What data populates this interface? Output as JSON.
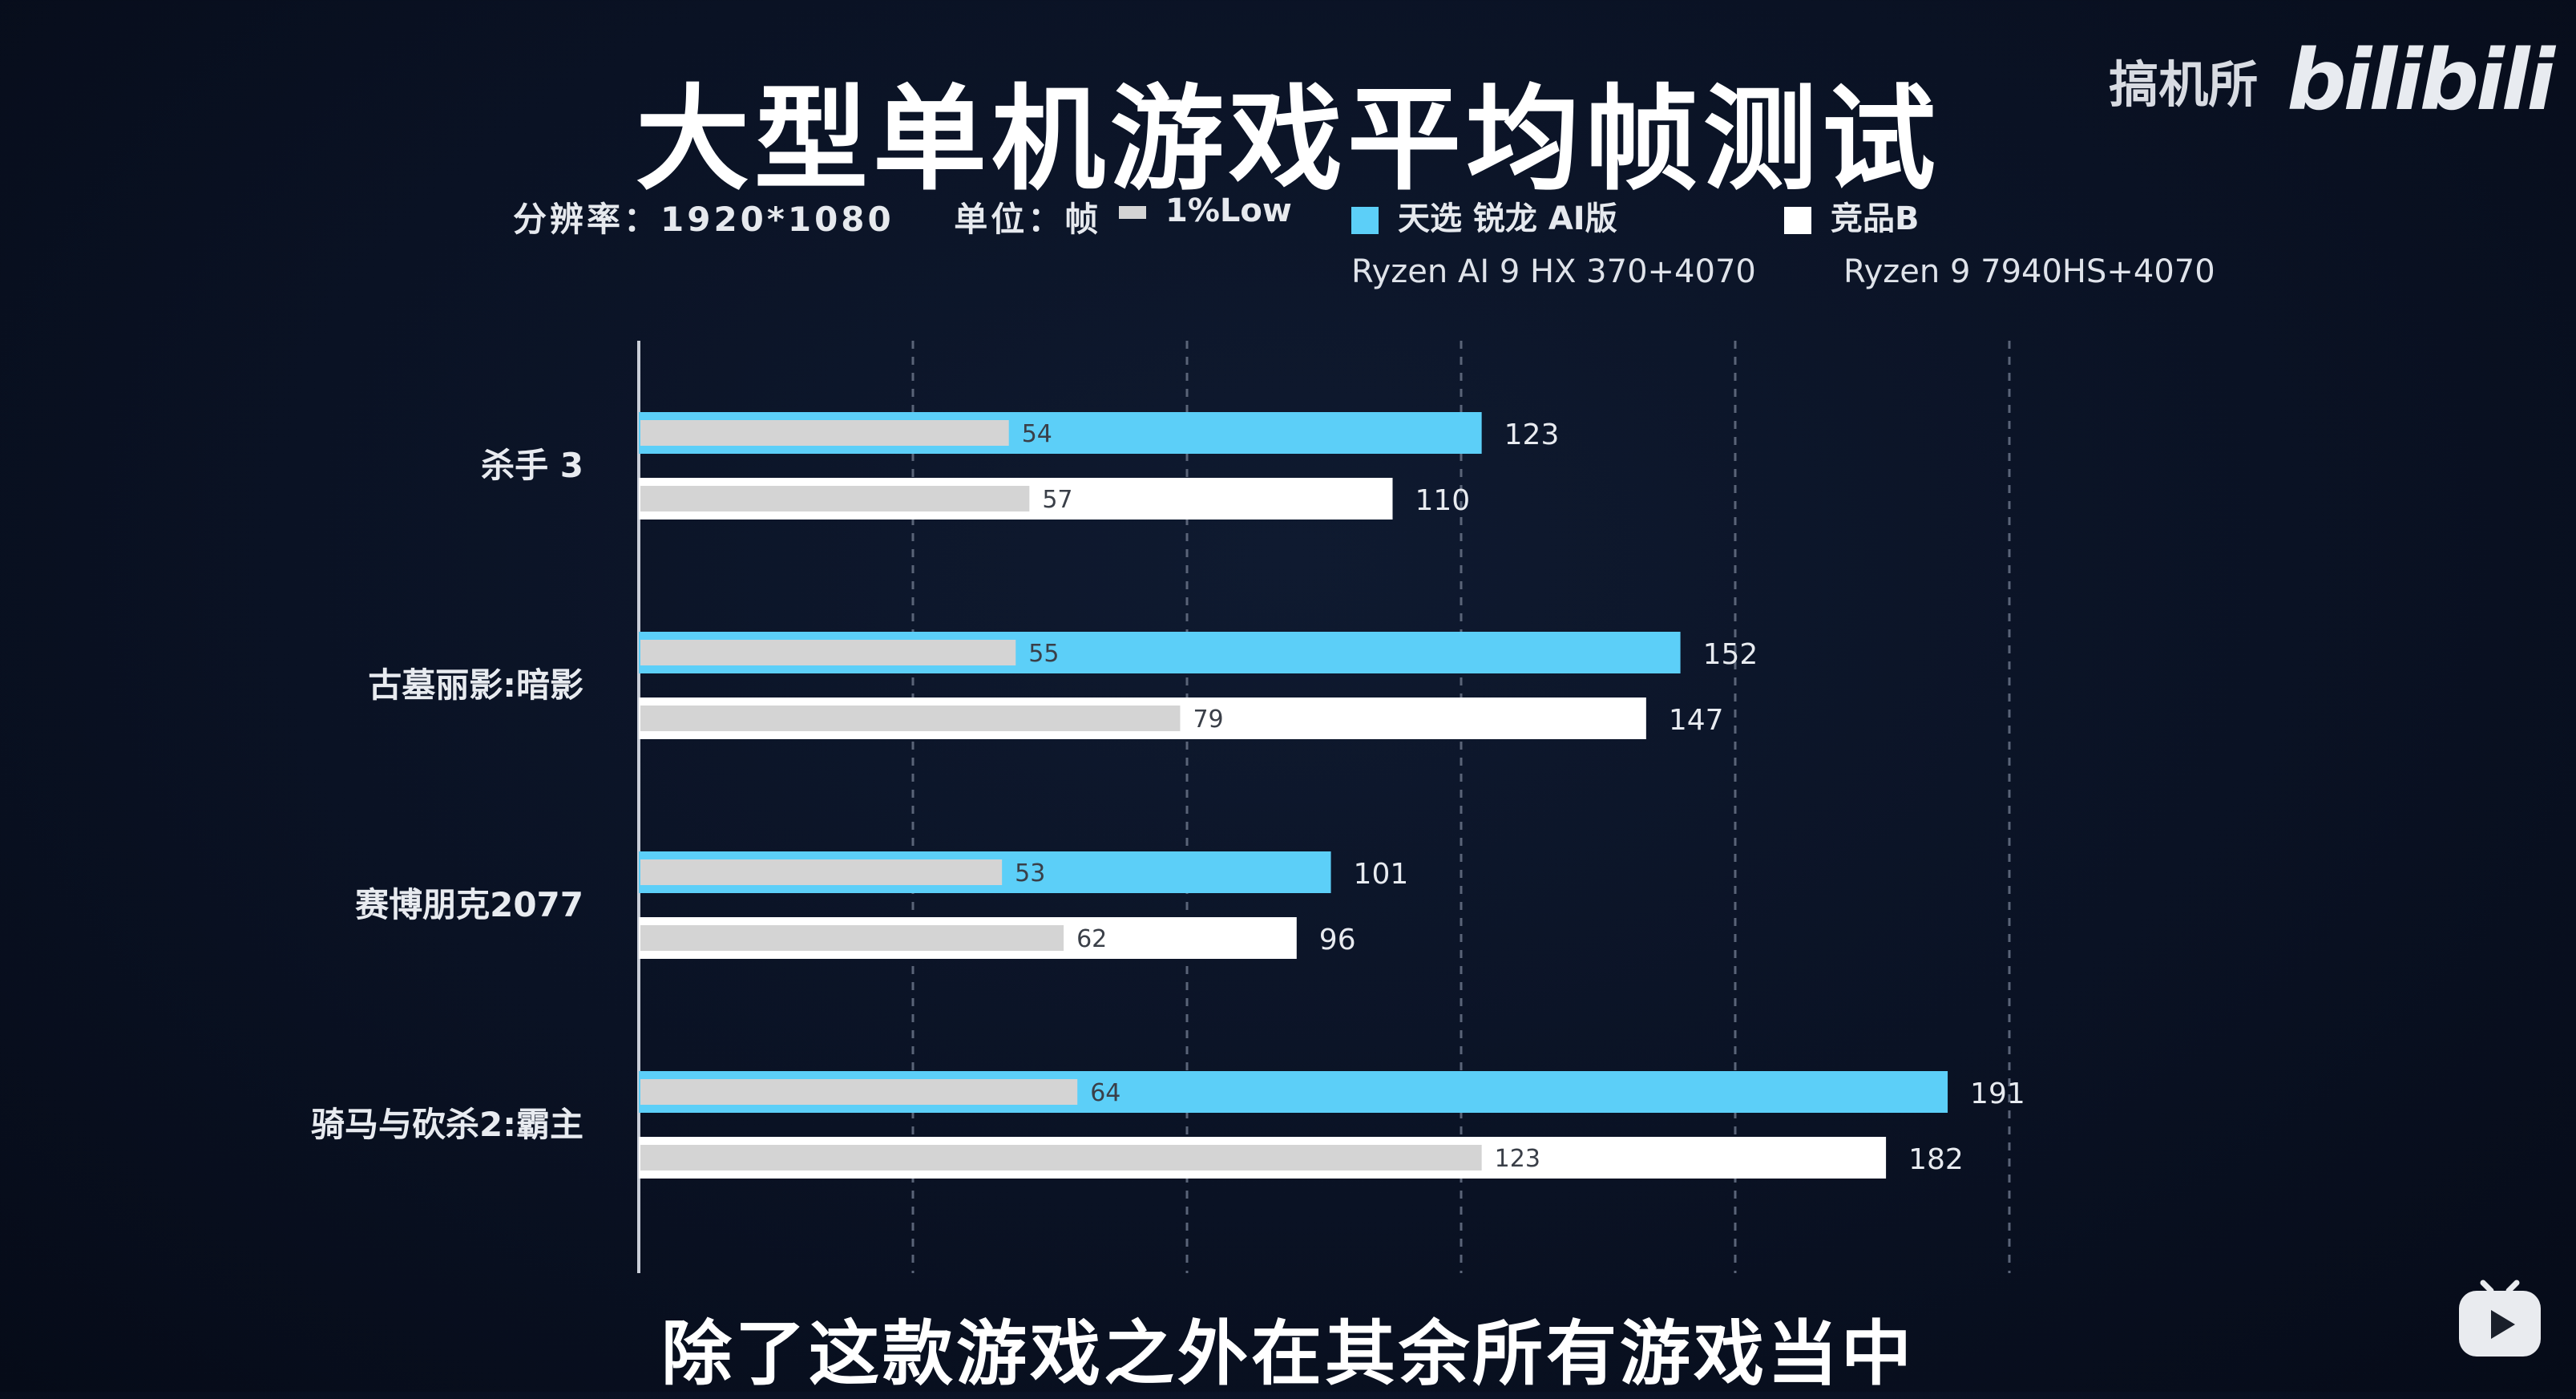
{
  "header": {
    "title": "大型单机游戏平均帧测试",
    "resolution": "分辨率：1920*1080",
    "unit": "单位：帧"
  },
  "watermark": {
    "channel": "搞机所",
    "logo": "bilibili"
  },
  "legend": {
    "low": "1%Low",
    "series_a_name": "天选 锐龙 AI版",
    "series_a_sub": "Ryzen AI 9 HX 370+4070",
    "series_b_name": "竞品B",
    "series_b_sub": "Ryzen 9 7940HS+4070"
  },
  "caption": "除了这款游戏之外在其余所有游戏当中",
  "colors": {
    "series_a": "#5ccff8",
    "series_b": "#ffffff",
    "low": "#d4d4d4"
  },
  "chart_data": {
    "type": "bar",
    "orientation": "horizontal",
    "categories": [
      "杀手 3",
      "古墓丽影:暗影",
      "赛博朋克2077",
      "骑马与砍杀2:霸主"
    ],
    "series": [
      {
        "name": "天选 锐龙 AI版",
        "avg": [
          123,
          152,
          101,
          191
        ],
        "low": [
          54,
          55,
          53,
          64
        ]
      },
      {
        "name": "竞品B",
        "avg": [
          110,
          147,
          96,
          182
        ],
        "low": [
          57,
          79,
          62,
          123
        ]
      }
    ],
    "xlim": [
      0,
      200
    ],
    "grid": true
  }
}
